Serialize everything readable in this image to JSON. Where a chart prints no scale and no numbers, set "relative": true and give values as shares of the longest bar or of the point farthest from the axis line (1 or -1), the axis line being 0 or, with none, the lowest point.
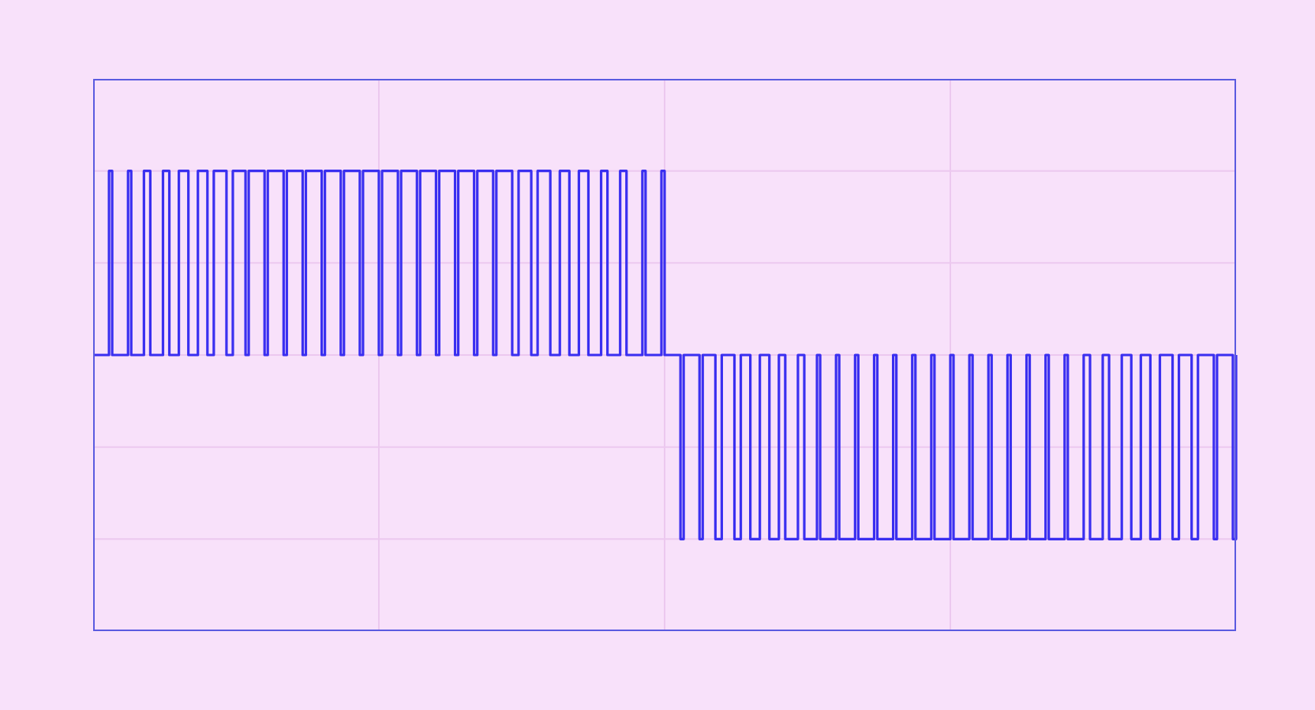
{
  "chart_data": {
    "type": "step",
    "relative": true,
    "grid": true,
    "marker": "none",
    "line_style": "solid",
    "categories": [
      null,
      null,
      null,
      null,
      null,
      null,
      null,
      null,
      null,
      null,
      null,
      null,
      null,
      null,
      null,
      null,
      null,
      null,
      null,
      null,
      null,
      null,
      null,
      null,
      null,
      null,
      null,
      null,
      null,
      null,
      null,
      null,
      null,
      null,
      null,
      null,
      null,
      null,
      null,
      null,
      null,
      null,
      null,
      null,
      null,
      null,
      null,
      null,
      null,
      null,
      null,
      null,
      null,
      null,
      null,
      null,
      null,
      null,
      null,
      null,
      null,
      null,
      null,
      null,
      null,
      null,
      null,
      null,
      null,
      null,
      null,
      null,
      null,
      null,
      null,
      null,
      null,
      null,
      null,
      null,
      null,
      null,
      null,
      null,
      null,
      null,
      null,
      null,
      null,
      null,
      null,
      null,
      null,
      null,
      null,
      null,
      null,
      null,
      null,
      null,
      null,
      null,
      null,
      null,
      null,
      null,
      null,
      null,
      null,
      null,
      null,
      null,
      null,
      null,
      null,
      null,
      null,
      null,
      null,
      null,
      null,
      null,
      null,
      null,
      null,
      null,
      null,
      null,
      null,
      null,
      null,
      null,
      null,
      null,
      null,
      null,
      null,
      null,
      null,
      null,
      null,
      null,
      null,
      null,
      null,
      null,
      null,
      null,
      null,
      null,
      null,
      null,
      null,
      null,
      null,
      null,
      null,
      null,
      null,
      null,
      null,
      null,
      null,
      null,
      null,
      null,
      null,
      null,
      null,
      null,
      null,
      null,
      null,
      null,
      null,
      null,
      null,
      null,
      null,
      null,
      null,
      null,
      null,
      null,
      null,
      null,
      null,
      null,
      null,
      null,
      null,
      null,
      null,
      null,
      null,
      null,
      null,
      null,
      null,
      null,
      null,
      null,
      null,
      null,
      null,
      null,
      null,
      null,
      null,
      null,
      null,
      null,
      null,
      null,
      null,
      null,
      null,
      null,
      null,
      null,
      null,
      null,
      null,
      null,
      null,
      null,
      null,
      null,
      null,
      null,
      null,
      null,
      null,
      null,
      null,
      null,
      null,
      null,
      null,
      null,
      null,
      null,
      null,
      null,
      null,
      null,
      null,
      null,
      null,
      null,
      null,
      null,
      null,
      null,
      null,
      null,
      null,
      null,
      null,
      null,
      null,
      null,
      null,
      null,
      null,
      null,
      null,
      null,
      null,
      null,
      null,
      null,
      null,
      null,
      null,
      null,
      null,
      null,
      null,
      null,
      null,
      null,
      null,
      null,
      null,
      null,
      null,
      null,
      null,
      null,
      null,
      null,
      null,
      null,
      null,
      null,
      null,
      null,
      null,
      null,
      null,
      null,
      null,
      null,
      null,
      null,
      null,
      null,
      null,
      null,
      null,
      null,
      null,
      null,
      null,
      null,
      null,
      null,
      null,
      null,
      null,
      null,
      null,
      null,
      null,
      null,
      null,
      null,
      null,
      null,
      null,
      null,
      null,
      null,
      null,
      null,
      null,
      null,
      null,
      null,
      null,
      null,
      null,
      null,
      null,
      null,
      null,
      null,
      null,
      null,
      null,
      null,
      null,
      null,
      null,
      null,
      null,
      null,
      null,
      null,
      null
    ],
    "series": [
      {
        "color": "#3a2ff0",
        "values": [
          0,
          0,
          0,
          0,
          0,
          1,
          0,
          0,
          0,
          0,
          0,
          1,
          0,
          0,
          0,
          0,
          1,
          1,
          0,
          0,
          0,
          0,
          1,
          1,
          0,
          0,
          0,
          1,
          1,
          1,
          0,
          0,
          0,
          1,
          1,
          1,
          0,
          0,
          1,
          1,
          1,
          1,
          0,
          0,
          1,
          1,
          1,
          1,
          0,
          1,
          1,
          1,
          1,
          1,
          0,
          1,
          1,
          1,
          1,
          1,
          0,
          1,
          1,
          1,
          1,
          1,
          0,
          1,
          1,
          1,
          1,
          1,
          0,
          1,
          1,
          1,
          1,
          1,
          0,
          1,
          1,
          1,
          1,
          1,
          0,
          1,
          1,
          1,
          1,
          1,
          0,
          1,
          1,
          1,
          1,
          1,
          0,
          1,
          1,
          1,
          1,
          1,
          0,
          1,
          1,
          1,
          1,
          1,
          0,
          1,
          1,
          1,
          1,
          1,
          0,
          1,
          1,
          1,
          1,
          1,
          0,
          1,
          1,
          1,
          1,
          1,
          0,
          1,
          1,
          1,
          1,
          1,
          0,
          0,
          1,
          1,
          1,
          1,
          0,
          0,
          1,
          1,
          1,
          1,
          0,
          0,
          0,
          1,
          1,
          1,
          0,
          0,
          0,
          1,
          1,
          1,
          0,
          0,
          0,
          0,
          1,
          1,
          0,
          0,
          0,
          0,
          1,
          1,
          0,
          0,
          0,
          0,
          0,
          1,
          0,
          0,
          0,
          0,
          0,
          1,
          0,
          0,
          0,
          0,
          0,
          -1,
          0,
          0,
          0,
          0,
          0,
          -1,
          0,
          0,
          0,
          0,
          -1,
          -1,
          0,
          0,
          0,
          0,
          -1,
          -1,
          0,
          0,
          0,
          -1,
          -1,
          -1,
          0,
          0,
          0,
          -1,
          -1,
          -1,
          0,
          0,
          -1,
          -1,
          -1,
          -1,
          0,
          0,
          -1,
          -1,
          -1,
          -1,
          0,
          -1,
          -1,
          -1,
          -1,
          -1,
          0,
          -1,
          -1,
          -1,
          -1,
          -1,
          0,
          -1,
          -1,
          -1,
          -1,
          -1,
          0,
          -1,
          -1,
          -1,
          -1,
          -1,
          0,
          -1,
          -1,
          -1,
          -1,
          -1,
          0,
          -1,
          -1,
          -1,
          -1,
          -1,
          0,
          -1,
          -1,
          -1,
          -1,
          -1,
          0,
          -1,
          -1,
          -1,
          -1,
          -1,
          0,
          -1,
          -1,
          -1,
          -1,
          -1,
          0,
          -1,
          -1,
          -1,
          -1,
          -1,
          0,
          -1,
          -1,
          -1,
          -1,
          -1,
          0,
          -1,
          -1,
          -1,
          -1,
          -1,
          0,
          -1,
          -1,
          -1,
          -1,
          -1,
          0,
          -1,
          -1,
          -1,
          -1,
          -1,
          0,
          0,
          -1,
          -1,
          -1,
          -1,
          0,
          0,
          -1,
          -1,
          -1,
          -1,
          0,
          0,
          0,
          -1,
          -1,
          -1,
          0,
          0,
          0,
          -1,
          -1,
          -1,
          0,
          0,
          0,
          0,
          -1,
          -1,
          0,
          0,
          0,
          0,
          -1,
          -1,
          0,
          0,
          0,
          0,
          0,
          -1,
          0,
          0,
          0,
          0,
          0,
          -1,
          0
        ]
      }
    ]
  }
}
